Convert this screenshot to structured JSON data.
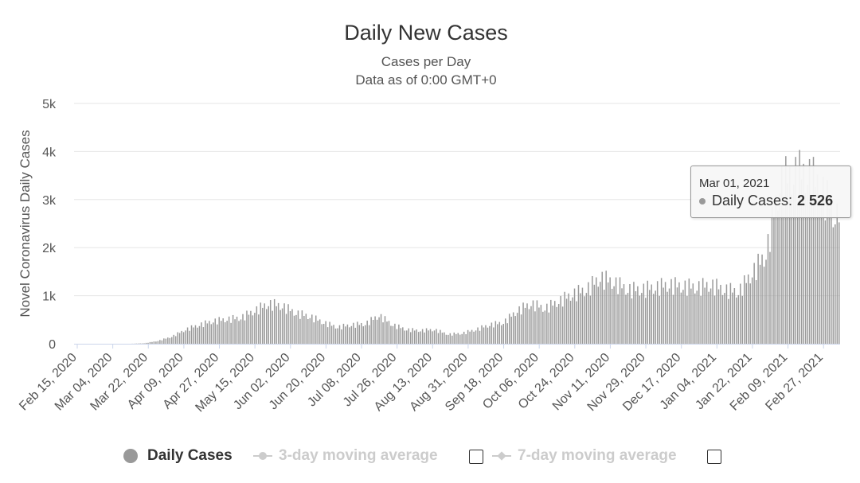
{
  "chart": {
    "title": "Daily New Cases",
    "subtitle_line1": "Cases per Day",
    "subtitle_line2": "Data as of 0:00 GMT+0"
  },
  "tooltip": {
    "date": "Mar 01, 2021",
    "series_label": "Daily Cases:",
    "value": "2 526"
  },
  "legend": {
    "items": [
      {
        "label": "Daily Cases",
        "active": true
      },
      {
        "label": "3-day moving average",
        "active": false
      },
      {
        "label": "7-day moving average",
        "active": false
      }
    ]
  },
  "colors": {
    "bar": "#999999",
    "gridline": "#e6e6e6",
    "baseline": "#ccd6eb",
    "inactive": "#cccccc"
  },
  "chart_data": {
    "type": "bar",
    "title": "Daily New Cases",
    "subtitle": "Cases per Day / Data as of 0:00 GMT+0",
    "xlabel": "",
    "ylabel": "Novel Coronavirus Daily Cases",
    "ylim": [
      0,
      5000
    ],
    "yticks": [
      0,
      1000,
      2000,
      3000,
      4000,
      5000
    ],
    "ytick_labels": [
      "0",
      "1k",
      "2k",
      "3k",
      "4k",
      "5k"
    ],
    "xtick_labels": [
      "Feb 15, 2020",
      "Mar 04, 2020",
      "Mar 22, 2020",
      "Apr 09, 2020",
      "Apr 27, 2020",
      "May 15, 2020",
      "Jun 02, 2020",
      "Jun 20, 2020",
      "Jul 08, 2020",
      "Jul 26, 2020",
      "Aug 13, 2020",
      "Aug 31, 2020",
      "Sep 18, 2020",
      "Oct 06, 2020",
      "Oct 24, 2020",
      "Nov 11, 2020",
      "Nov 29, 2020",
      "Dec 17, 2020",
      "Jan 04, 2021",
      "Jan 22, 2021",
      "Feb 09, 2021",
      "Feb 27, 2021"
    ],
    "grid": true,
    "legend_position": "bottom-center",
    "series": [
      {
        "name": "Daily Cases",
        "start_date": "Feb 15, 2020",
        "end_date": "Mar 01, 2021",
        "weekly_values": [
          0,
          0,
          0,
          0,
          0,
          10,
          60,
          150,
          300,
          400,
          480,
          520,
          550,
          700,
          850,
          800,
          650,
          580,
          450,
          350,
          400,
          420,
          600,
          400,
          300,
          280,
          300,
          200,
          220,
          300,
          400,
          450,
          700,
          850,
          750,
          900,
          1050,
          1150,
          1400,
          1300,
          1150,
          1150,
          1200,
          1250,
          1220,
          1200,
          1250,
          1150,
          1100,
          1500,
          1900,
          3400,
          3600,
          3600,
          3300,
          2700
        ],
        "highlight": {
          "date": "Mar 01, 2021",
          "value": 2526
        }
      }
    ]
  }
}
